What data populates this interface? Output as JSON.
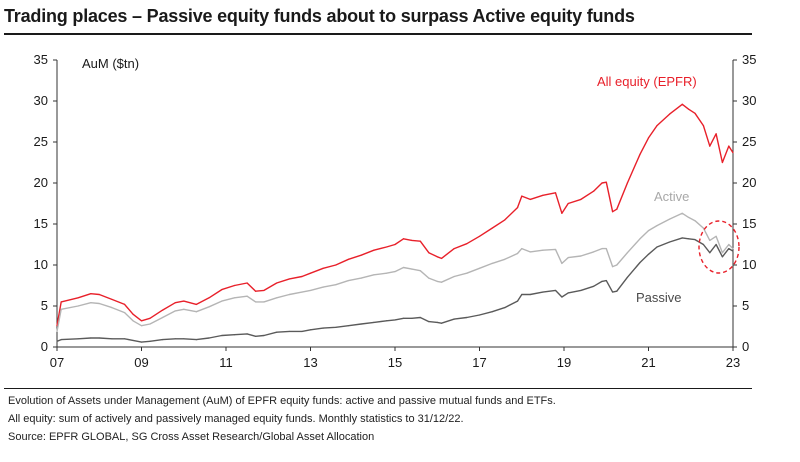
{
  "chart_data": {
    "type": "line",
    "title": "Trading places – Passive equity funds about to surpass Active equity funds",
    "ylabel": "AuM ($tn)",
    "xlabel": "",
    "xlim": [
      2007,
      2023
    ],
    "ylim": [
      0,
      35
    ],
    "y_ticks": [
      "0",
      "5",
      "10",
      "15",
      "20",
      "25",
      "30",
      "35"
    ],
    "x_ticks": [
      "07",
      "09",
      "11",
      "13",
      "15",
      "17",
      "19",
      "21",
      "23"
    ],
    "x_tick_values": [
      2007,
      2009,
      2011,
      2013,
      2015,
      2017,
      2019,
      2021,
      2023
    ],
    "grid": false,
    "right_axis": true,
    "series": [
      {
        "name": "All equity (EPFR)",
        "color": "#e8202a",
        "x": [
          2007.0,
          2007.1,
          2007.5,
          2007.8,
          2008.0,
          2008.3,
          2008.6,
          2008.8,
          2009.0,
          2009.2,
          2009.5,
          2009.8,
          2010.0,
          2010.3,
          2010.6,
          2010.9,
          2011.2,
          2011.5,
          2011.7,
          2011.9,
          2012.2,
          2012.5,
          2012.8,
          2013.0,
          2013.3,
          2013.6,
          2013.9,
          2014.2,
          2014.5,
          2014.8,
          2015.0,
          2015.2,
          2015.4,
          2015.6,
          2015.8,
          2016.0,
          2016.1,
          2016.4,
          2016.7,
          2017.0,
          2017.3,
          2017.6,
          2017.9,
          2018.0,
          2018.2,
          2018.5,
          2018.8,
          2018.95,
          2019.1,
          2019.4,
          2019.7,
          2019.9,
          2020.0,
          2020.15,
          2020.25,
          2020.5,
          2020.8,
          2021.0,
          2021.2,
          2021.5,
          2021.8,
          2021.95,
          2022.1,
          2022.3,
          2022.45,
          2022.6,
          2022.75,
          2022.9,
          2023.0
        ],
        "y": [
          2.6,
          5.5,
          6.0,
          6.5,
          6.4,
          5.8,
          5.2,
          4.0,
          3.2,
          3.5,
          4.5,
          5.4,
          5.6,
          5.2,
          6.0,
          7.0,
          7.5,
          7.8,
          6.8,
          6.9,
          7.8,
          8.3,
          8.6,
          9.0,
          9.6,
          10.0,
          10.7,
          11.2,
          11.8,
          12.2,
          12.5,
          13.2,
          13.0,
          12.9,
          11.5,
          11.0,
          10.8,
          12.0,
          12.6,
          13.5,
          14.5,
          15.5,
          17.0,
          18.4,
          18.0,
          18.5,
          18.8,
          16.3,
          17.5,
          18.0,
          19.0,
          20.0,
          20.1,
          16.5,
          16.8,
          20.0,
          23.5,
          25.5,
          27.0,
          28.4,
          29.6,
          29.0,
          28.5,
          27.0,
          24.5,
          26.0,
          22.5,
          24.5,
          23.7
        ]
      },
      {
        "name": "Active",
        "color": "#b5b5b5",
        "x": [
          2007.0,
          2007.1,
          2007.5,
          2007.8,
          2008.0,
          2008.3,
          2008.6,
          2008.8,
          2009.0,
          2009.2,
          2009.5,
          2009.8,
          2010.0,
          2010.3,
          2010.6,
          2010.9,
          2011.2,
          2011.5,
          2011.7,
          2011.9,
          2012.2,
          2012.5,
          2012.8,
          2013.0,
          2013.3,
          2013.6,
          2013.9,
          2014.2,
          2014.5,
          2014.8,
          2015.0,
          2015.2,
          2015.4,
          2015.6,
          2015.8,
          2016.0,
          2016.1,
          2016.4,
          2016.7,
          2017.0,
          2017.3,
          2017.6,
          2017.9,
          2018.0,
          2018.2,
          2018.5,
          2018.8,
          2018.95,
          2019.1,
          2019.4,
          2019.7,
          2019.9,
          2020.0,
          2020.15,
          2020.25,
          2020.5,
          2020.8,
          2021.0,
          2021.2,
          2021.5,
          2021.8,
          2021.95,
          2022.1,
          2022.3,
          2022.45,
          2022.6,
          2022.75,
          2022.9,
          2023.0
        ],
        "y": [
          1.9,
          4.6,
          5.0,
          5.4,
          5.3,
          4.8,
          4.2,
          3.2,
          2.6,
          2.8,
          3.6,
          4.4,
          4.6,
          4.3,
          4.9,
          5.6,
          6.0,
          6.2,
          5.5,
          5.5,
          6.0,
          6.4,
          6.7,
          6.9,
          7.3,
          7.6,
          8.1,
          8.4,
          8.8,
          9.0,
          9.2,
          9.7,
          9.5,
          9.3,
          8.4,
          8.0,
          7.9,
          8.6,
          9.0,
          9.6,
          10.2,
          10.7,
          11.4,
          12.0,
          11.6,
          11.8,
          11.9,
          10.2,
          10.9,
          11.1,
          11.6,
          12.0,
          12.0,
          9.8,
          10.0,
          11.5,
          13.2,
          14.2,
          14.8,
          15.6,
          16.3,
          15.8,
          15.4,
          14.5,
          13.0,
          13.5,
          11.5,
          12.5,
          12.0
        ]
      },
      {
        "name": "Passive",
        "color": "#5a5a5a",
        "x": [
          2007.0,
          2007.1,
          2007.5,
          2007.8,
          2008.0,
          2008.3,
          2008.6,
          2008.8,
          2009.0,
          2009.2,
          2009.5,
          2009.8,
          2010.0,
          2010.3,
          2010.6,
          2010.9,
          2011.2,
          2011.5,
          2011.7,
          2011.9,
          2012.2,
          2012.5,
          2012.8,
          2013.0,
          2013.3,
          2013.6,
          2013.9,
          2014.2,
          2014.5,
          2014.8,
          2015.0,
          2015.2,
          2015.4,
          2015.6,
          2015.8,
          2016.0,
          2016.1,
          2016.4,
          2016.7,
          2017.0,
          2017.3,
          2017.6,
          2017.9,
          2018.0,
          2018.2,
          2018.5,
          2018.8,
          2018.95,
          2019.1,
          2019.4,
          2019.7,
          2019.9,
          2020.0,
          2020.15,
          2020.25,
          2020.5,
          2020.8,
          2021.0,
          2021.2,
          2021.5,
          2021.8,
          2021.95,
          2022.1,
          2022.3,
          2022.45,
          2022.6,
          2022.75,
          2022.9,
          2023.0
        ],
        "y": [
          0.7,
          0.9,
          1.0,
          1.1,
          1.1,
          1.0,
          1.0,
          0.8,
          0.6,
          0.7,
          0.9,
          1.0,
          1.0,
          0.9,
          1.1,
          1.4,
          1.5,
          1.6,
          1.3,
          1.4,
          1.8,
          1.9,
          1.9,
          2.1,
          2.3,
          2.4,
          2.6,
          2.8,
          3.0,
          3.2,
          3.3,
          3.5,
          3.5,
          3.6,
          3.1,
          3.0,
          2.9,
          3.4,
          3.6,
          3.9,
          4.3,
          4.8,
          5.6,
          6.4,
          6.4,
          6.7,
          6.9,
          6.1,
          6.6,
          6.9,
          7.4,
          8.0,
          8.1,
          6.7,
          6.8,
          8.5,
          10.3,
          11.3,
          12.2,
          12.8,
          13.3,
          13.2,
          13.1,
          12.5,
          11.5,
          12.5,
          11.0,
          12.0,
          11.7
        ]
      }
    ],
    "annotation": "dashed red ellipse around the crossover of Active and Passive near end-2022"
  },
  "footer": {
    "note1": "Evolution of Assets under Management (AuM) of EPFR equity funds: active and passive mutual funds and ETFs.",
    "note2": "All equity: sum of actively and passively managed equity funds. Monthly statistics to 31/12/22.",
    "source": "Source: EPFR GLOBAL, SG Cross Asset Research/Global Asset Allocation"
  }
}
